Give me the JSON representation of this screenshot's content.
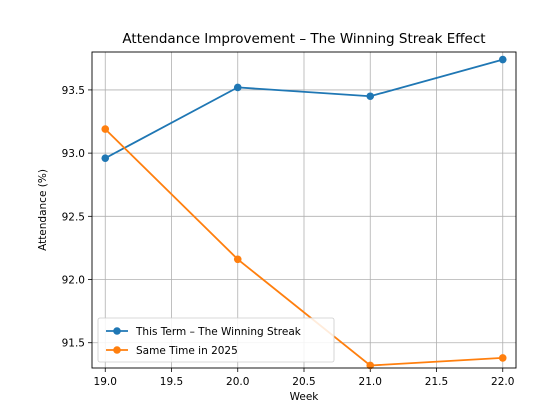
{
  "chart_data": {
    "type": "line",
    "title": "Attendance Improvement – The Winning Streak Effect",
    "xlabel": "Week",
    "ylabel": "Attendance (%)",
    "xlim": [
      18.9,
      22.1
    ],
    "ylim": [
      91.3,
      93.8
    ],
    "xticks": [
      19.0,
      19.5,
      20.0,
      20.5,
      21.0,
      21.5,
      22.0
    ],
    "xtick_labels": [
      "19.0",
      "19.5",
      "20.0",
      "20.5",
      "21.0",
      "21.5",
      "22.0"
    ],
    "yticks": [
      91.5,
      92.0,
      92.5,
      93.0,
      93.5
    ],
    "ytick_labels": [
      "91.5",
      "92.0",
      "92.5",
      "93.0",
      "93.5"
    ],
    "grid": true,
    "legend_position": "lower-left",
    "series": [
      {
        "name": "This Term – The Winning Streak",
        "color": "#1f77b4",
        "marker": "circle",
        "x": [
          19,
          20,
          21,
          22
        ],
        "y": [
          92.96,
          93.52,
          93.45,
          93.74
        ]
      },
      {
        "name": "Same Time in 2025",
        "color": "#ff7f0e",
        "marker": "circle",
        "x": [
          19,
          20,
          21,
          22
        ],
        "y": [
          93.19,
          92.16,
          91.32,
          91.38
        ]
      }
    ]
  }
}
